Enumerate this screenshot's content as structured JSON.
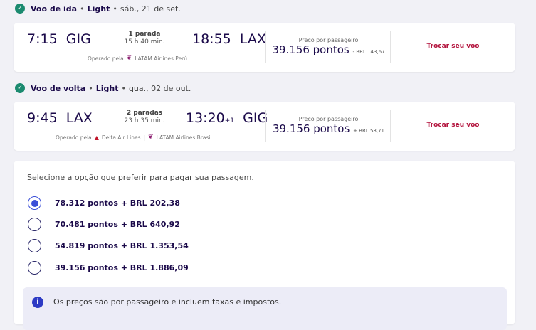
{
  "outbound": {
    "header": {
      "title": "Voo de ida",
      "fare": "Light",
      "date": "sáb., 21 de set."
    },
    "depart_time": "7:15",
    "depart_airport": "GIG",
    "stops": "1 parada",
    "duration": "15 h 40 min.",
    "arrive_time": "18:55",
    "arrive_day_offset": "",
    "arrive_airport": "LAX",
    "operated_label": "Operado pela",
    "carriers": [
      "LATAM Airlines Perú"
    ],
    "price_label": "Preço por passageiro",
    "price_points": "39.156 pontos",
    "price_cash": "- BRL 143,67",
    "change_label": "Trocar seu voo"
  },
  "inbound": {
    "header": {
      "title": "Voo de volta",
      "fare": "Light",
      "date": "qua., 02 de out."
    },
    "depart_time": "9:45",
    "depart_airport": "LAX",
    "stops": "2 paradas",
    "duration": "23 h 35 min.",
    "arrive_time": "13:20",
    "arrive_day_offset": "+1",
    "arrive_airport": "GIG",
    "operated_label": "Operado pela",
    "carriers": [
      "Delta Air Lines",
      "LATAM Airlines Brasil"
    ],
    "separator": "|",
    "price_label": "Preço por passageiro",
    "price_points": "39.156 pontos",
    "price_cash": "+ BRL 58,71",
    "change_label": "Trocar seu voo"
  },
  "payment": {
    "prompt": "Selecione a opção que preferir para pagar sua passagem.",
    "options": [
      {
        "label": "78.312 pontos + BRL 202,38",
        "selected": true
      },
      {
        "label": "70.481 pontos + BRL 640,92",
        "selected": false
      },
      {
        "label": "54.819 pontos + BRL 1.353,54",
        "selected": false
      },
      {
        "label": "39.156 pontos + BRL 1.886,09",
        "selected": false
      }
    ],
    "info": "Os preços são por passageiro e incluem taxas e impostos."
  },
  "colors": {
    "accent": "#3b4fd8",
    "change_link": "#b3123c",
    "check": "#1b8a6f",
    "text": "#1b0a4a"
  }
}
